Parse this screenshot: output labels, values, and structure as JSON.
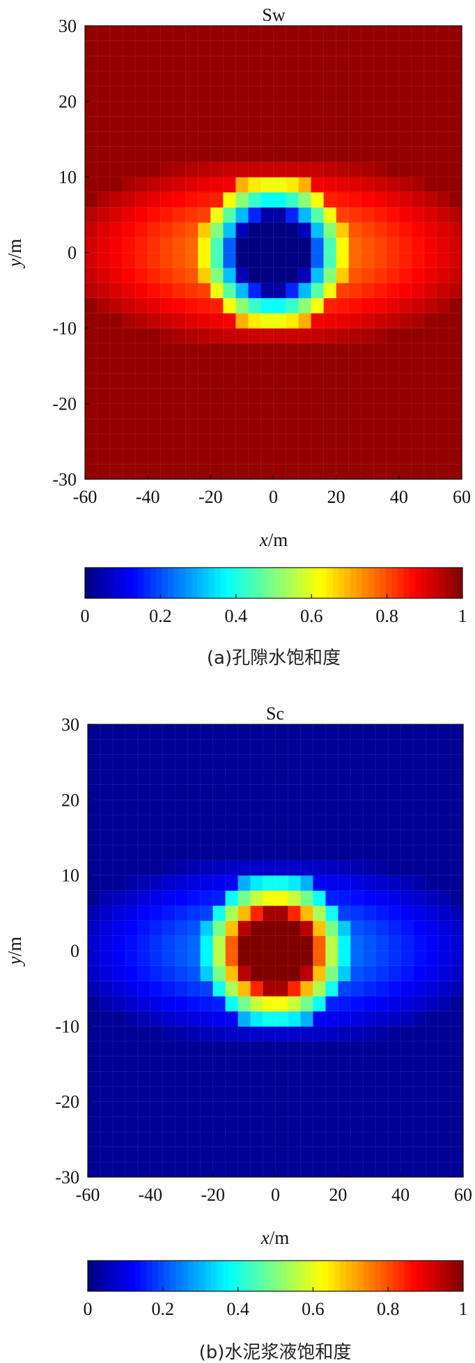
{
  "chart_data": [
    {
      "type": "heatmap",
      "title": "Sw",
      "xlabel_var": "x",
      "xlabel_unit": "/m",
      "ylabel_var": "y",
      "ylabel_unit": "/m",
      "xlim": [
        -60,
        60
      ],
      "ylim": [
        -30,
        30
      ],
      "xticks": [
        "-60",
        "-40",
        "-20",
        "0",
        "20",
        "40",
        "60"
      ],
      "yticks": [
        "30",
        "20",
        "10",
        "0",
        "-10",
        "-20",
        "-30"
      ],
      "colorbar_ticks": [
        "0",
        "0.2",
        "0.4",
        "0.6",
        "0.8",
        "1"
      ],
      "colorbar_range": [
        0,
        1
      ],
      "colormap": "jet",
      "background_value": 0.98,
      "plume": {
        "center": [
          0,
          0
        ],
        "core_half_width_x": 12,
        "core_half_height_y": 5,
        "core_value": 0.0,
        "halo_half_width_x": 60,
        "halo_half_height_y": 11
      },
      "caption": "(a)孔隙水饱和度"
    },
    {
      "type": "heatmap",
      "title": "Sc",
      "xlabel_var": "x",
      "xlabel_unit": "/m",
      "ylabel_var": "y",
      "ylabel_unit": "/m",
      "xlim": [
        -60,
        60
      ],
      "ylim": [
        -30,
        30
      ],
      "xticks": [
        "-60",
        "-40",
        "-20",
        "0",
        "20",
        "40",
        "60"
      ],
      "yticks": [
        "30",
        "20",
        "10",
        "0",
        "-10",
        "-20",
        "-30"
      ],
      "colorbar_ticks": [
        "0",
        "0.2",
        "0.4",
        "0.6",
        "0.8",
        "1"
      ],
      "colorbar_range": [
        0,
        1
      ],
      "colormap": "jet",
      "background_value": 0.02,
      "plume": {
        "center": [
          0,
          0
        ],
        "core_half_width_x": 12,
        "core_half_height_y": 5,
        "core_value": 1.0,
        "halo_half_width_x": 60,
        "halo_half_height_y": 11
      },
      "caption": "(b)水泥浆液饱和度"
    }
  ]
}
